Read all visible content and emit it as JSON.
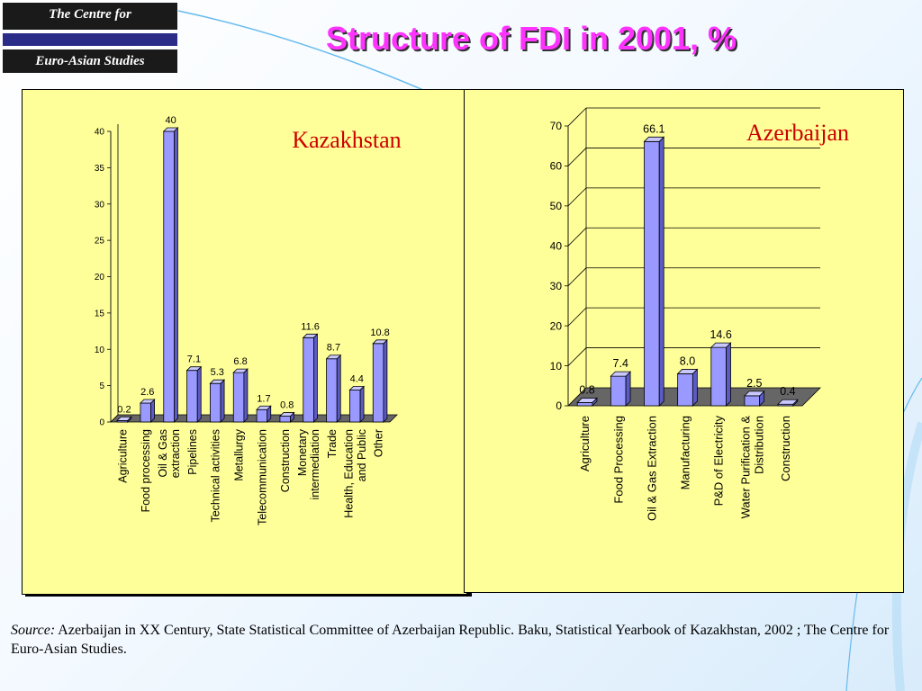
{
  "logo": {
    "line1": "The Centre for",
    "line2": "Euro-Asian Studies"
  },
  "title": "Structure of FDI in 2001, %",
  "colors": {
    "bar_face": "#9999ff",
    "bar_side": "#5b5bc4",
    "bar_top": "#c8c8ff",
    "panel": "#ffff99",
    "title": "#ff33ff",
    "chart_title": "#cc0000"
  },
  "chart_data": [
    {
      "type": "bar",
      "title": "Kazakhstan",
      "categories": [
        "Agriculture",
        "Food processing",
        "Oil & Gas extraction",
        "Pipelines",
        "Technical activities",
        "Metallurgy",
        "Telecommunication",
        "Construction",
        "Monetary intermediation",
        "Trade",
        "Health, Education and Public",
        "Other"
      ],
      "values": [
        0.2,
        2.6,
        40,
        7.1,
        5.3,
        6.8,
        1.7,
        0.8,
        11.6,
        8.7,
        4.4,
        10.8
      ],
      "value_labels": [
        "0.2",
        "2.6",
        "40",
        "7.1",
        "5.3",
        "6.8",
        "1.7",
        "0.8",
        "11.6",
        "8.7",
        "4.4",
        "10.8"
      ],
      "y_ticks": [
        0,
        5,
        10,
        15,
        20,
        25,
        30,
        35,
        40
      ],
      "ylim": [
        0,
        40
      ],
      "grid": false
    },
    {
      "type": "bar",
      "title": "Azerbaijan",
      "categories": [
        "Agriculture",
        "Food Processing",
        "Oil & Gas Extraction",
        "Manufacturing",
        "P&D of Electricity",
        "Water Purification & Distribution",
        "Construction"
      ],
      "values": [
        0.8,
        7.4,
        66.1,
        8.0,
        14.6,
        2.5,
        0.4
      ],
      "value_labels": [
        "0.8",
        "7.4",
        "66.1",
        "8.0",
        "14.6",
        "2.5",
        "0.4"
      ],
      "y_ticks": [
        0,
        10,
        20,
        30,
        40,
        50,
        60,
        70
      ],
      "ylim": [
        0,
        70
      ],
      "grid": true
    }
  ],
  "source": {
    "label": "Source:",
    "text": " Azerbaijan in XX Century, State Statistical Committee of Azerbaijan Republic. Baku, Statistical Yearbook of Kazakhstan, 2002 ; The Centre for Euro-Asian Studies."
  }
}
